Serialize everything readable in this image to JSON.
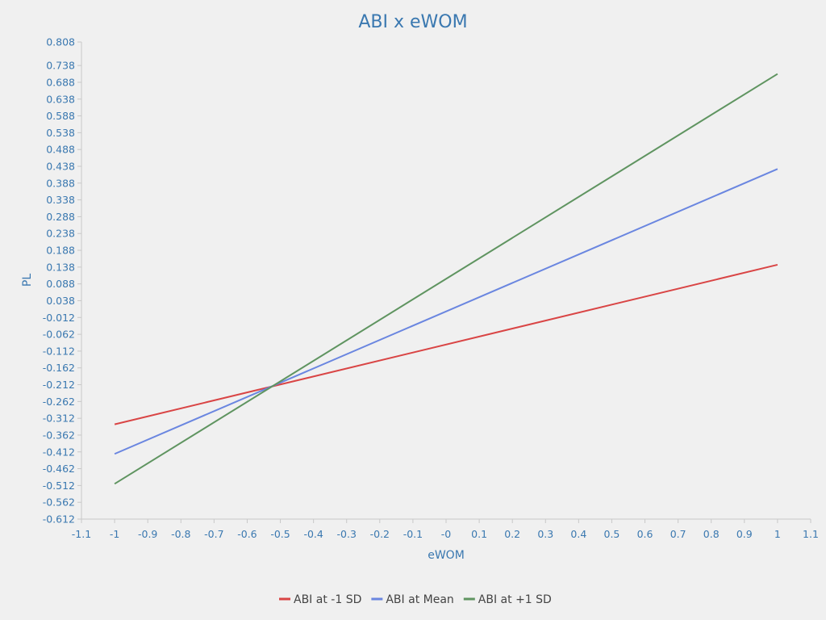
{
  "chart_data": {
    "type": "line",
    "title": "ABI x eWOM",
    "xlabel": "eWOM",
    "ylabel": "PL",
    "xlim": [
      -1.1,
      1.1
    ],
    "ylim": [
      -0.612,
      0.808
    ],
    "x_ticks": [
      "-1.1",
      "-1",
      "-0.9",
      "-0.8",
      "-0.7",
      "-0.6",
      "-0.5",
      "-0.4",
      "-0.3",
      "-0.2",
      "-0.1",
      "-0",
      "0.1",
      "0.2",
      "0.3",
      "0.4",
      "0.5",
      "0.6",
      "0.7",
      "0.8",
      "0.9",
      "1",
      "1.1"
    ],
    "y_ticks": [
      "0.808",
      "0.738",
      "0.688",
      "0.638",
      "0.588",
      "0.538",
      "0.488",
      "0.438",
      "0.388",
      "0.338",
      "0.288",
      "0.238",
      "0.188",
      "0.138",
      "0.088",
      "0.038",
      "-0.012",
      "-0.062",
      "-0.112",
      "-0.162",
      "-0.212",
      "-0.262",
      "-0.312",
      "-0.362",
      "-0.412",
      "-0.462",
      "-0.512",
      "-0.562",
      "-0.612"
    ],
    "grid": false,
    "legend_position": "bottom-center",
    "series": [
      {
        "name": "ABI at -1 SD",
        "color": "#d94545",
        "x": [
          -1,
          1
        ],
        "y": [
          -0.33,
          0.145
        ]
      },
      {
        "name": "ABI at Mean",
        "color": "#6a86e0",
        "x": [
          -1,
          1
        ],
        "y": [
          -0.418,
          0.43
        ]
      },
      {
        "name": "ABI at +1 SD",
        "color": "#5f9460",
        "x": [
          -1,
          1
        ],
        "y": [
          -0.507,
          0.713
        ]
      }
    ]
  }
}
